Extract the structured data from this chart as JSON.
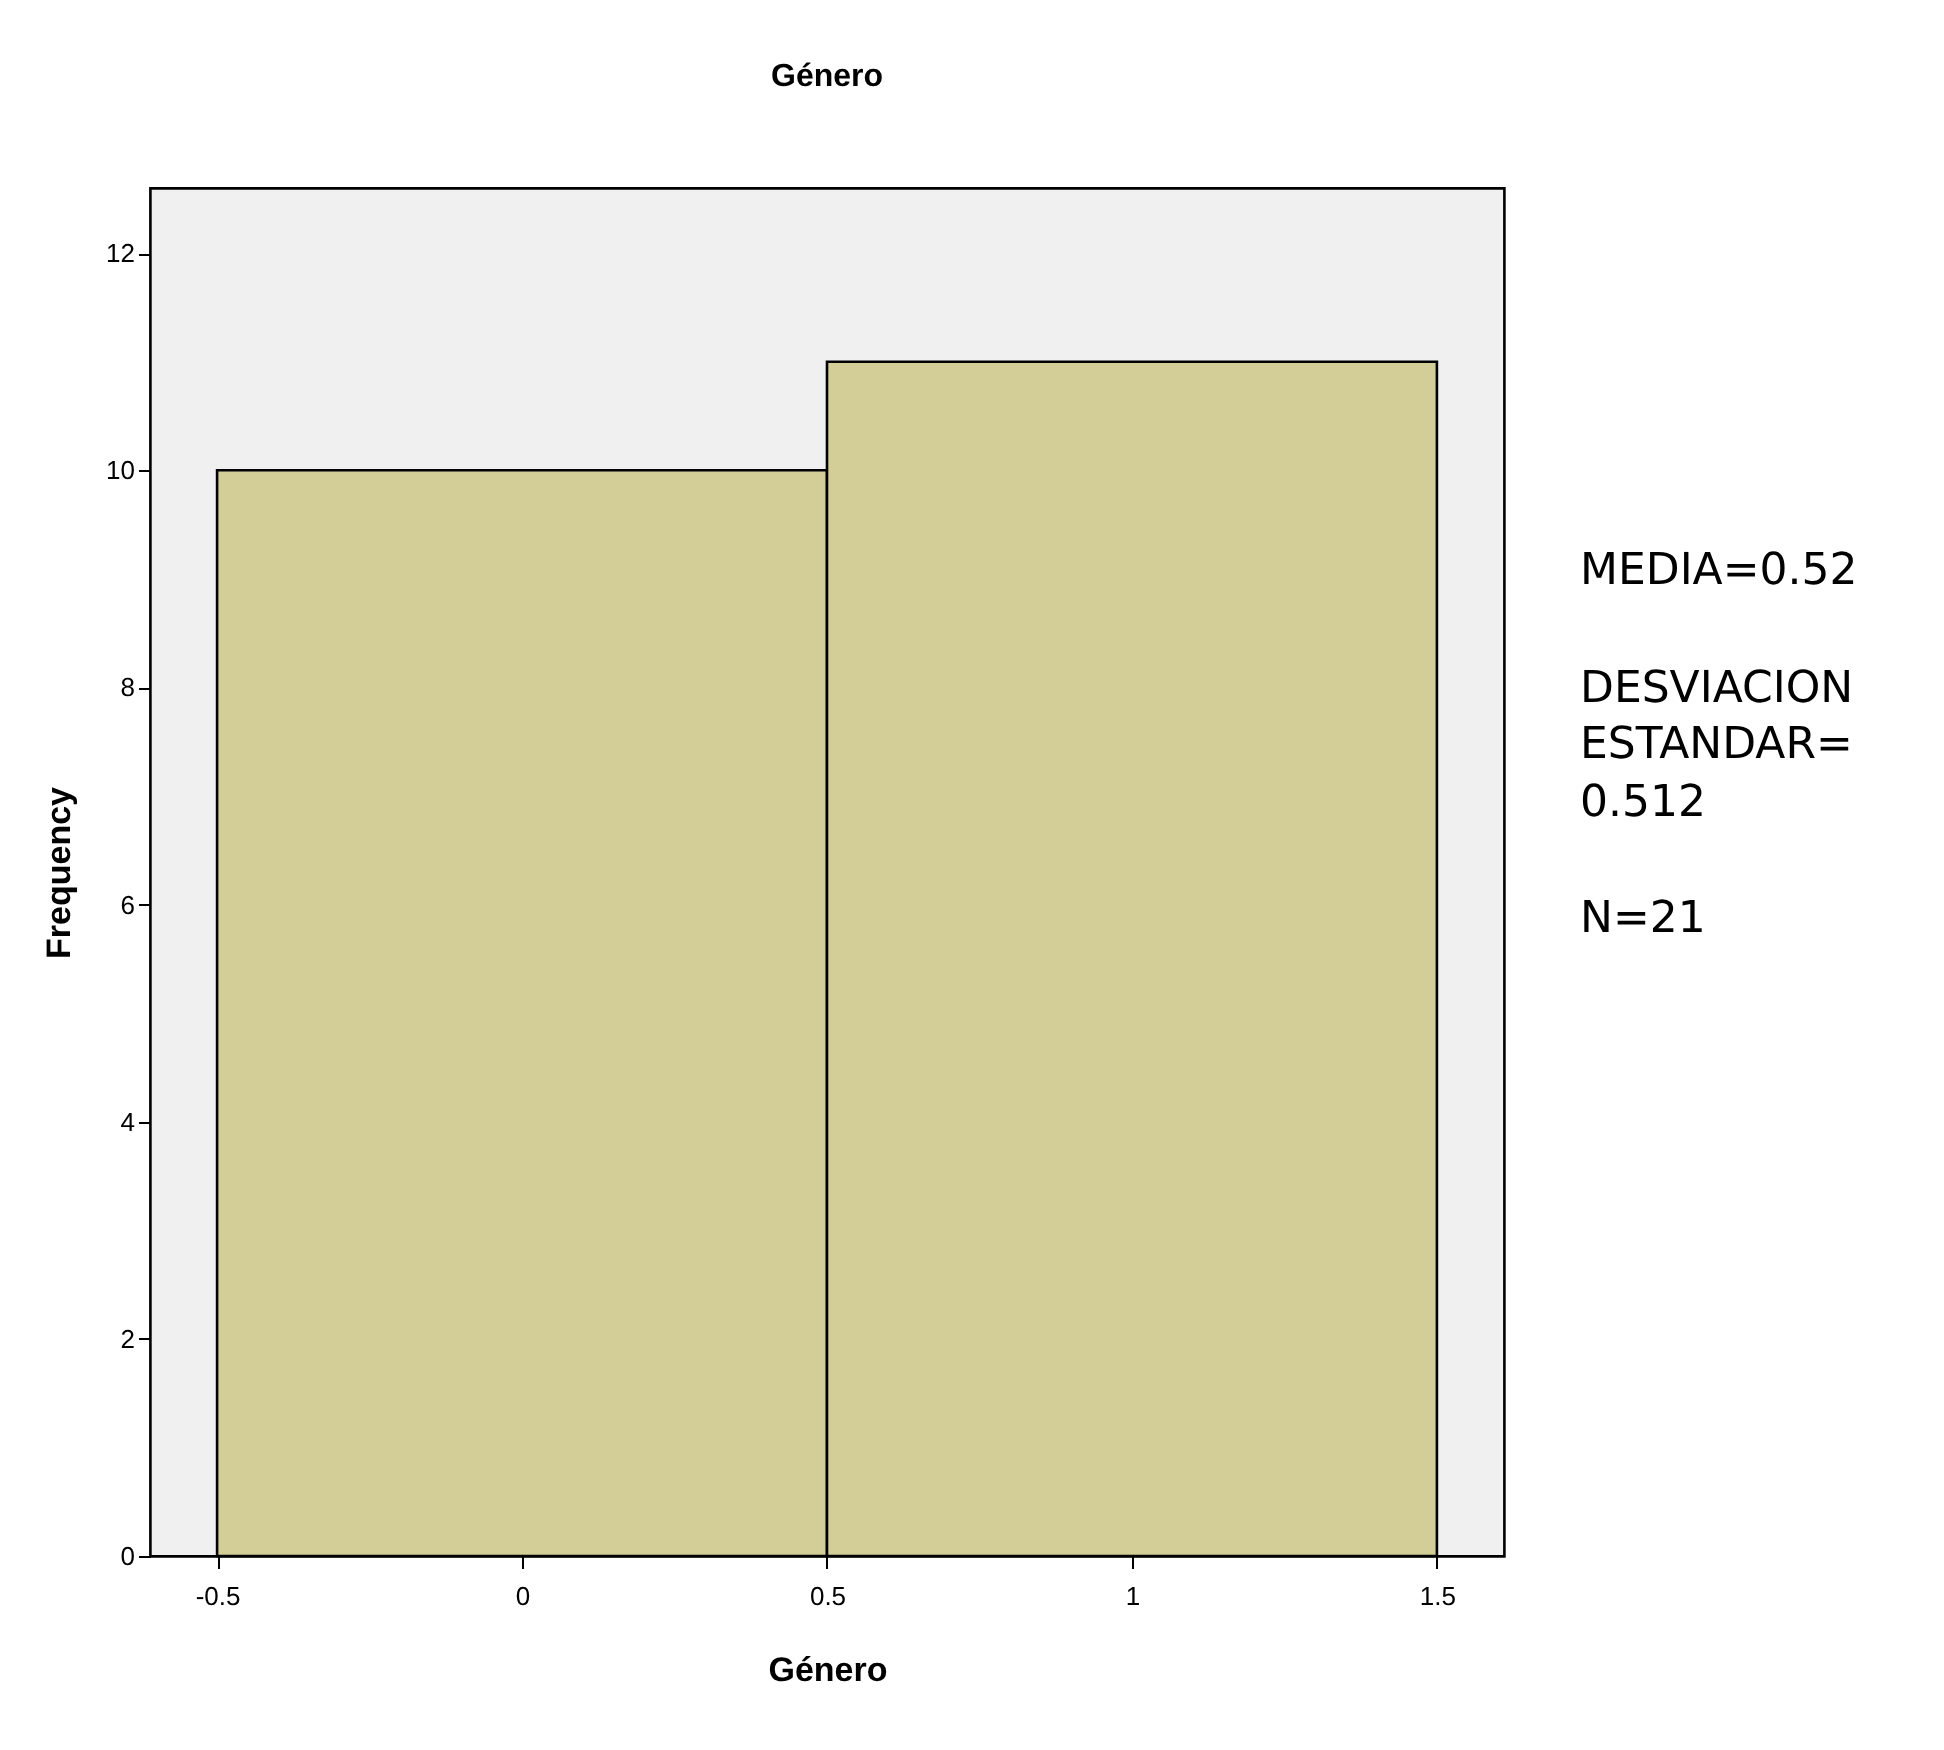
{
  "chart_data": {
    "type": "histogram",
    "title": "Género",
    "xlabel": "Género",
    "ylabel": "Frequency",
    "bins": [
      -0.5,
      0.5,
      1.5
    ],
    "values": [
      10,
      11
    ],
    "color": "#d3ce97",
    "xlim": [
      -0.61,
      1.61
    ],
    "xticks": [
      -0.5,
      0,
      0.5,
      1,
      1.5
    ],
    "ylim": [
      0,
      12.6
    ],
    "yticks": [
      0,
      2,
      4,
      6,
      8,
      10,
      12
    ],
    "grid": false,
    "annotations": [
      "MEDIA=0.52",
      "DESVIACION ESTANDAR= 0.512",
      "N=21"
    ]
  }
}
